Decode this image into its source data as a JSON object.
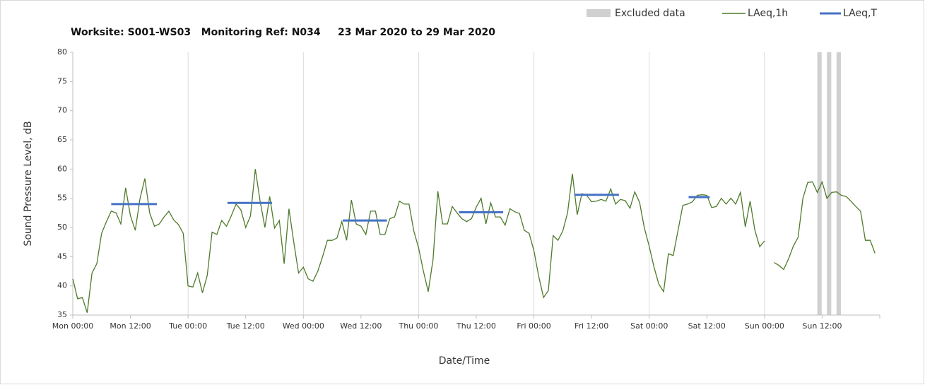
{
  "chart_data": {
    "type": "line",
    "title": "Worksite: S001-WS03   Monitoring Ref: N034     23 Mar 2020 to 29 Mar 2020",
    "xlabel": "Date/Time",
    "ylabel": "Sound Pressure Level, dB",
    "xlim": [
      0,
      168
    ],
    "ylim": [
      35,
      80
    ],
    "yticks": [
      35,
      40,
      45,
      50,
      55,
      60,
      65,
      70,
      75,
      80
    ],
    "xticks": [
      {
        "value": 0,
        "label": "Mon 00:00"
      },
      {
        "value": 12,
        "label": "Mon 12:00"
      },
      {
        "value": 24,
        "label": "Tue 00:00"
      },
      {
        "value": 36,
        "label": "Tue 12:00"
      },
      {
        "value": 48,
        "label": "Wed 00:00"
      },
      {
        "value": 60,
        "label": "Wed 12:00"
      },
      {
        "value": 72,
        "label": "Thu 00:00"
      },
      {
        "value": 84,
        "label": "Thu 12:00"
      },
      {
        "value": 96,
        "label": "Fri 00:00"
      },
      {
        "value": 108,
        "label": "Fri 12:00"
      },
      {
        "value": 120,
        "label": "Sat 00:00"
      },
      {
        "value": 132,
        "label": "Sat 12:00"
      },
      {
        "value": 144,
        "label": "Sun 00:00"
      },
      {
        "value": 156,
        "label": "Sun 12:00"
      }
    ],
    "xgridlines": [
      24,
      48,
      72,
      96,
      120,
      144
    ],
    "x": [
      0,
      1,
      2,
      3,
      4,
      5,
      6,
      7,
      8,
      9,
      10,
      11,
      12,
      13,
      14,
      15,
      16,
      17,
      18,
      19,
      20,
      21,
      22,
      23,
      24,
      25,
      26,
      27,
      28,
      29,
      30,
      31,
      32,
      33,
      34,
      35,
      36,
      37,
      38,
      39,
      40,
      41,
      42,
      43,
      44,
      45,
      46,
      47,
      48,
      49,
      50,
      51,
      52,
      53,
      54,
      55,
      56,
      57,
      58,
      59,
      60,
      61,
      62,
      63,
      64,
      65,
      66,
      67,
      68,
      69,
      70,
      71,
      72,
      73,
      74,
      75,
      76,
      77,
      78,
      79,
      80,
      81,
      82,
      83,
      84,
      85,
      86,
      87,
      88,
      89,
      90,
      91,
      92,
      93,
      94,
      95,
      96,
      97,
      98,
      99,
      100,
      101,
      102,
      103,
      104,
      105,
      106,
      107,
      108,
      109,
      110,
      111,
      112,
      113,
      114,
      115,
      116,
      117,
      118,
      119,
      120,
      121,
      122,
      123,
      124,
      125,
      126,
      127,
      128,
      129,
      130,
      131,
      132,
      133,
      134,
      135,
      136,
      137,
      138,
      139,
      140,
      141,
      142,
      143,
      144,
      145,
      146,
      147,
      148,
      149,
      150,
      151,
      152,
      153,
      154,
      155,
      156,
      157,
      158,
      159,
      160,
      161,
      162,
      163,
      164,
      165,
      166,
      167
    ],
    "series": [
      {
        "name": "LAeq,1h",
        "color": "#4e7a2a",
        "values": [
          41.2,
          37.8,
          38,
          35.4,
          42.2,
          43.8,
          49,
          51,
          52.8,
          52.5,
          50.6,
          56.8,
          52,
          49.5,
          55,
          58.4,
          52.5,
          50.2,
          50.6,
          51.8,
          52.8,
          51.3,
          50.5,
          49,
          40,
          39.8,
          42.2,
          38.8,
          41.8,
          49.2,
          48.8,
          51.2,
          50.2,
          52,
          54,
          53,
          50,
          52,
          60,
          54.5,
          50,
          55.3,
          49.9,
          51.2,
          43.8,
          53.2,
          47.5,
          42.2,
          43.2,
          41.2,
          40.8,
          42.5,
          45,
          47.8,
          47.8,
          48.2,
          51,
          47.8,
          54.7,
          50.6,
          50.2,
          48.8,
          52.8,
          52.8,
          48.8,
          48.8,
          51.5,
          51.8,
          54.5,
          54,
          54,
          49.4,
          46.5,
          42.5,
          39,
          44.5,
          56.2,
          50.6,
          50.6,
          53.6,
          52.5,
          51.5,
          51,
          51.5,
          53.5,
          55,
          50.6,
          54.2,
          51.8,
          51.8,
          50.4,
          53.2,
          52.7,
          52.4,
          49.5,
          49,
          46,
          41.6,
          38,
          39.2,
          48.6,
          47.8,
          49.4,
          52.5,
          59.2,
          52.2,
          55.8,
          55.5,
          54.4,
          54.5,
          54.8,
          54.5,
          56.6,
          54,
          54.8,
          54.6,
          53.3,
          56.1,
          54.3,
          49.9,
          46.8,
          43.2,
          40.3,
          39,
          45.5,
          45.2,
          49.5,
          53.8,
          54,
          54.4,
          55.5,
          55.6,
          55.5,
          53.4,
          53.6,
          55,
          54,
          55,
          54,
          56,
          50.1,
          54.5,
          49.5,
          46.7,
          47.7,
          null,
          44,
          43.5,
          42.8,
          44.6,
          46.8,
          48.3,
          55,
          57.7,
          57.8,
          56,
          57.8,
          55,
          56,
          56.1,
          55.5,
          55.3,
          54.5,
          53.6,
          52.8,
          47.8,
          47.8,
          45.6
        ]
      }
    ],
    "periods": {
      "name": "LAeq,T",
      "color": "#4472c4",
      "segments": [
        {
          "x": [
            8,
            17.5
          ],
          "value": 54
        },
        {
          "x": [
            32.2,
            41.5
          ],
          "value": 54.2
        },
        {
          "x": [
            56.2,
            65.4
          ],
          "value": 51.2
        },
        {
          "x": [
            80.4,
            89.6
          ],
          "value": 52.6
        },
        {
          "x": [
            104.4,
            113.7
          ],
          "value": 55.6
        },
        {
          "x": [
            128.2,
            132.6
          ],
          "value": 55.2
        }
      ]
    },
    "excluded": {
      "name": "Excluded data",
      "color": "#d0d0d0",
      "ranges": [
        [
          155,
          155.9
        ],
        [
          157,
          157.9
        ],
        [
          159,
          159.9
        ]
      ]
    }
  }
}
